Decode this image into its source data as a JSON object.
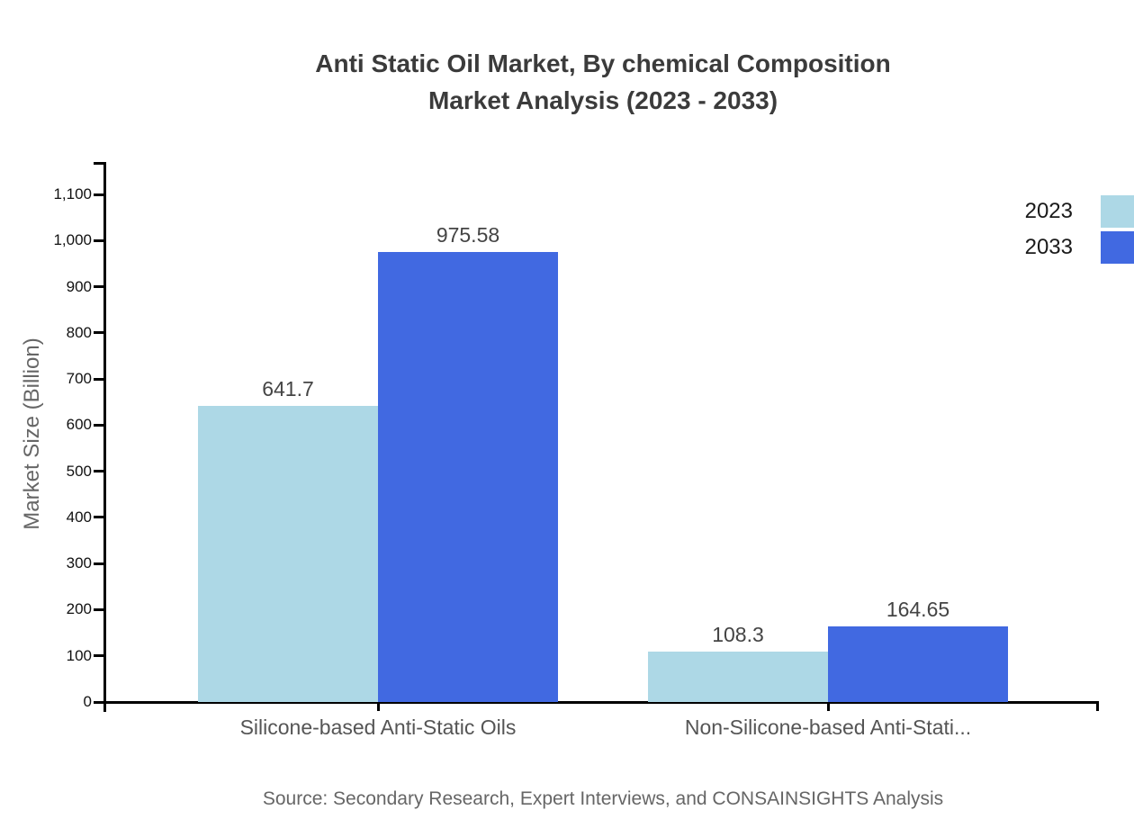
{
  "title": {
    "line1": "Anti Static Oil Market, By chemical Composition",
    "line2": "Market Analysis (2023 - 2033)"
  },
  "source": "Source: Secondary Research, Expert Interviews, and CONSAINSIGHTS Analysis",
  "chart_data": {
    "type": "bar",
    "title": "Anti Static Oil Market, By chemical Composition Market Analysis (2023 - 2033)",
    "categories": [
      "Silicone-based Anti-Static Oils",
      "Non-Silicone-based Anti-Stati..."
    ],
    "series": [
      {
        "name": "2023",
        "color": "#ADD8E6",
        "values": [
          641.7,
          108.3
        ],
        "value_labels": [
          "641.7",
          "108.3"
        ]
      },
      {
        "name": "2033",
        "color": "#4169E1",
        "values": [
          975.58,
          164.65
        ],
        "value_labels": [
          "975.58",
          "164.65"
        ]
      }
    ],
    "xlabel": "",
    "ylabel": "Market Size (Billion)",
    "ylim": [
      0,
      1100
    ],
    "ytick_step": 100,
    "ytick_labels": [
      "0",
      "100",
      "200",
      "300",
      "400",
      "500",
      "600",
      "700",
      "800",
      "900",
      "1,000",
      "1,100"
    ],
    "grid": false,
    "legend_position": "top-right",
    "colors": {
      "axis": "#000000",
      "value_label_text": "#444444",
      "category_text": "#555555"
    }
  }
}
